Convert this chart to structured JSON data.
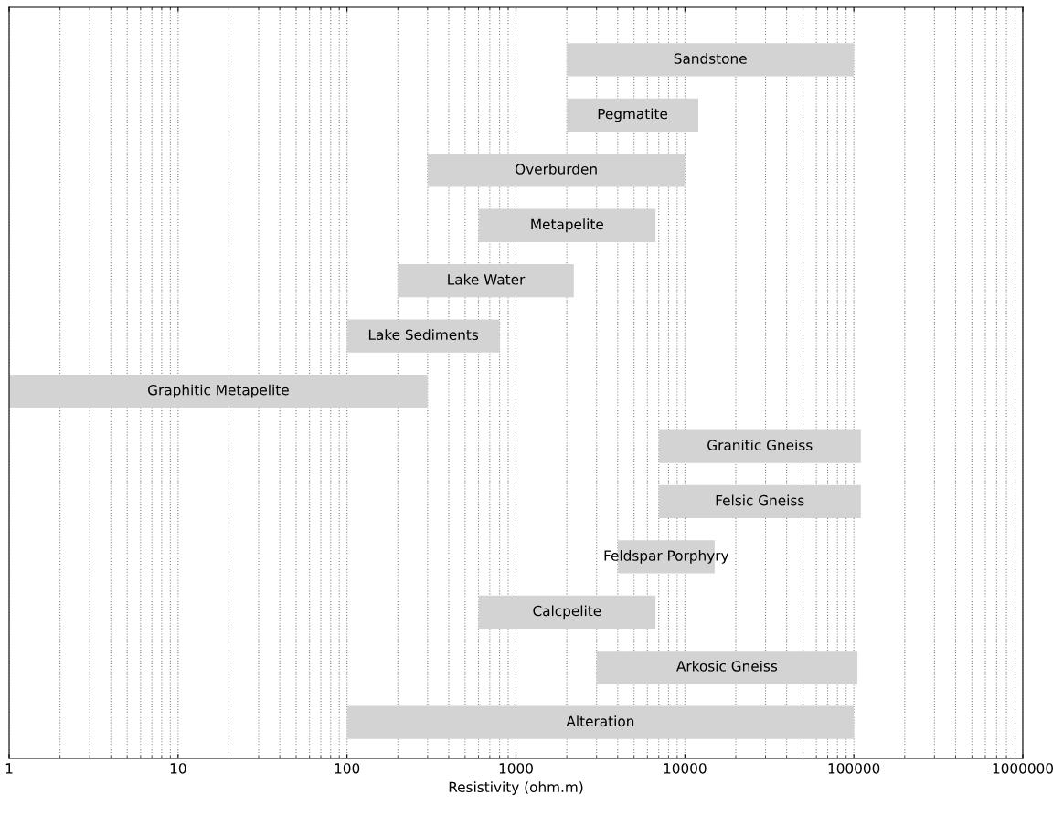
{
  "chart_data": {
    "type": "bar",
    "orientation": "horizontal",
    "log": "x",
    "xlabel": "Resistivity (ohm.m)",
    "categories": [
      "Sandstone",
      "Pegmatite",
      "Overburden",
      "Metapelite",
      "Lake Water",
      "Lake Sediments",
      "Graphitic Metapelite",
      "Granitic Gneiss",
      "Felsic Gneiss",
      "Feldspar Porphyry",
      "Calcpelite",
      "Arkosic Gneiss",
      "Alteration"
    ],
    "base": [
      2000,
      2000,
      300,
      600,
      200,
      100,
      1,
      7000,
      7000,
      4000,
      600,
      3000,
      100
    ],
    "values": [
      98000,
      10000,
      9700,
      6100,
      2000,
      700,
      299,
      103000,
      103000,
      11000,
      6100,
      102000,
      99900
    ],
    "color": "#d3d3d3",
    "xlim": [
      1,
      1000000
    ],
    "xticks": [
      1,
      10,
      100,
      1000,
      10000,
      100000,
      1000000
    ],
    "grid": "x",
    "line_style": "dotted",
    "tick_labels": "x"
  }
}
